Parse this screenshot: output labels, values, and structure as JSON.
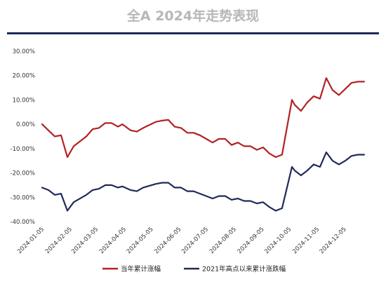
{
  "title": "全A 2024年走势表现",
  "colors": {
    "series1": "#b22222",
    "series2": "#1f2a5a",
    "rule": "#1f2a5a"
  },
  "chart_data": {
    "type": "line",
    "title": "全A 2024年走势表现",
    "xlabel": "",
    "ylabel": "",
    "ylim": [
      -40,
      30
    ],
    "y_ticks": [
      "30.00%",
      "20.00%",
      "10.00%",
      "0.00%",
      "-10.00%",
      "-20.00%",
      "-30.00%",
      "-40.00%"
    ],
    "x_tick_labels": [
      "2024-01-05",
      "2024-02-05",
      "2024-03-05",
      "2024-04-05",
      "2024-05-05",
      "2024-06-05",
      "2024-07-05",
      "2024-08-05",
      "2024-09-05",
      "2024-10-05",
      "2024-11-05",
      "2024-12-05"
    ],
    "x": [
      "2024-01-05",
      "2024-01-12",
      "2024-01-19",
      "2024-01-26",
      "2024-02-02",
      "2024-02-09",
      "2024-02-23",
      "2024-03-01",
      "2024-03-08",
      "2024-03-15",
      "2024-03-22",
      "2024-03-29",
      "2024-04-03",
      "2024-04-12",
      "2024-04-19",
      "2024-04-26",
      "2024-05-10",
      "2024-05-17",
      "2024-05-24",
      "2024-05-31",
      "2024-06-07",
      "2024-06-14",
      "2024-06-21",
      "2024-06-28",
      "2024-07-05",
      "2024-07-12",
      "2024-07-19",
      "2024-07-26",
      "2024-08-02",
      "2024-08-09",
      "2024-08-16",
      "2024-08-23",
      "2024-08-30",
      "2024-09-06",
      "2024-09-13",
      "2024-09-20",
      "2024-09-27",
      "2024-10-08",
      "2024-10-11",
      "2024-10-18",
      "2024-10-25",
      "2024-11-01",
      "2024-11-08",
      "2024-11-15",
      "2024-11-22",
      "2024-11-29",
      "2024-12-06",
      "2024-12-13",
      "2024-12-20",
      "2024-12-27"
    ],
    "legend_position": "bottom",
    "grid": false,
    "series": [
      {
        "name": "当年累计涨幅",
        "values": [
          0,
          -2.5,
          -5,
          -4.5,
          -13.5,
          -9,
          -5,
          -2,
          -1.5,
          0.5,
          0.5,
          -1,
          0,
          -2.5,
          -3,
          -1.5,
          1,
          1.5,
          1.8,
          -1,
          -1.5,
          -3.5,
          -3.5,
          -4.5,
          -6,
          -7.5,
          -6,
          -6,
          -8.5,
          -7.5,
          -9,
          -9,
          -10.5,
          -9.5,
          -12,
          -13.5,
          -12.5,
          10,
          8,
          5.5,
          9,
          11.5,
          10.5,
          19,
          14,
          12,
          14.5,
          17,
          17.5,
          17.5
        ]
      },
      {
        "name": "2021年高点以来累计涨跌幅",
        "values": [
          -26,
          -27,
          -29,
          -28.5,
          -35.5,
          -32,
          -29,
          -27,
          -26.5,
          -25,
          -25,
          -26,
          -25.5,
          -27,
          -27.5,
          -26,
          -24.5,
          -24,
          -24,
          -26,
          -26,
          -27.5,
          -27.5,
          -28.5,
          -29.5,
          -30.5,
          -29.5,
          -29.5,
          -31,
          -30.5,
          -31.5,
          -31.5,
          -32.5,
          -32,
          -34,
          -35.5,
          -34.5,
          -17.5,
          -19,
          -21,
          -19,
          -16.5,
          -17.5,
          -11.5,
          -15,
          -16.5,
          -15,
          -13,
          -12.5,
          -12.5
        ]
      }
    ]
  }
}
